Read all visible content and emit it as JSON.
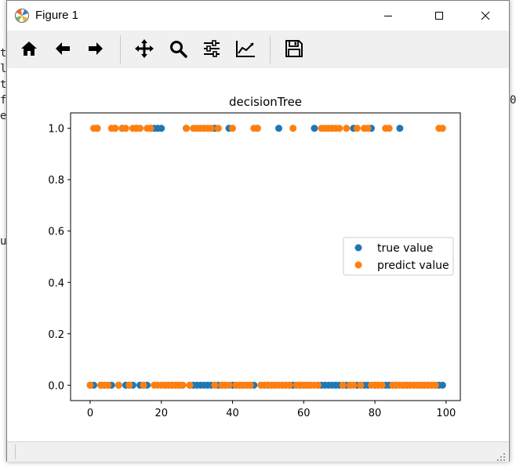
{
  "background_console": {
    "chars": [
      "t",
      "l",
      "t",
      "f",
      "e",
      "u",
      "0"
    ]
  },
  "window": {
    "title": "Figure 1",
    "app_icon": "matplotlib-figure-icon"
  },
  "toolbar": {
    "buttons": [
      {
        "name": "home-icon"
      },
      {
        "name": "back-arrow-icon"
      },
      {
        "name": "forward-arrow-icon"
      },
      {
        "name": "pan-move-icon"
      },
      {
        "name": "zoom-magnifier-icon"
      },
      {
        "name": "configure-subplots-icon"
      },
      {
        "name": "edit-axis-curve-icon"
      },
      {
        "name": "save-floppy-icon"
      }
    ]
  },
  "chart_data": {
    "type": "scatter",
    "title": "decisionTree",
    "xlabel": "",
    "ylabel": "",
    "xlim": [
      -5.5,
      104
    ],
    "ylim": [
      -0.06,
      1.06
    ],
    "x_ticks": [
      0,
      20,
      40,
      60,
      80,
      100
    ],
    "y_ticks": [
      0.0,
      0.2,
      0.4,
      0.6,
      0.8,
      1.0
    ],
    "x_tick_labels": [
      "0",
      "20",
      "40",
      "60",
      "80",
      "100"
    ],
    "y_tick_labels": [
      "0.0",
      "0.2",
      "0.4",
      "0.6",
      "0.8",
      "1.0"
    ],
    "grid": false,
    "legend_position": "center-right",
    "series": [
      {
        "name": "true value",
        "color": "#1f77b4",
        "x": [
          0,
          1,
          2,
          3,
          4,
          5,
          6,
          7,
          8,
          9,
          10,
          11,
          12,
          13,
          14,
          15,
          16,
          17,
          18,
          19,
          20,
          21,
          22,
          23,
          24,
          25,
          26,
          27,
          28,
          29,
          30,
          31,
          32,
          33,
          34,
          35,
          36,
          37,
          38,
          39,
          40,
          41,
          42,
          43,
          44,
          45,
          46,
          47,
          48,
          49,
          50,
          51,
          52,
          53,
          54,
          55,
          56,
          57,
          58,
          59,
          60,
          61,
          62,
          63,
          64,
          65,
          66,
          67,
          68,
          69,
          70,
          71,
          72,
          73,
          74,
          75,
          76,
          77,
          78,
          79,
          80,
          81,
          82,
          83,
          84,
          85,
          86,
          87,
          88,
          89,
          90,
          91,
          92,
          93,
          94,
          95,
          96,
          97,
          98,
          99
        ],
        "y": [
          0,
          0,
          1,
          0,
          0,
          0,
          0,
          1,
          0,
          1,
          0,
          0,
          0,
          1,
          0,
          0,
          0,
          1,
          1,
          1,
          1,
          0,
          0,
          0,
          0,
          0,
          0,
          1,
          0,
          0,
          0,
          0,
          0,
          0,
          0,
          1,
          0,
          0,
          0,
          1,
          0,
          0,
          0,
          0,
          0,
          0,
          0,
          1,
          0,
          0,
          0,
          0,
          0,
          1,
          0,
          0,
          0,
          0,
          0,
          0,
          0,
          0,
          0,
          1,
          0,
          0,
          0,
          0,
          0,
          0,
          0,
          0,
          0,
          0,
          1,
          0,
          0,
          0,
          0,
          1,
          0,
          0,
          0,
          0,
          0,
          0,
          0,
          1,
          0,
          0,
          0,
          0,
          0,
          0,
          0,
          0,
          0,
          0,
          0,
          0
        ]
      },
      {
        "name": "predict value",
        "color": "#ff7f0e",
        "x": [
          0,
          1,
          2,
          3,
          4,
          5,
          6,
          7,
          8,
          9,
          10,
          11,
          12,
          13,
          14,
          15,
          16,
          17,
          18,
          19,
          20,
          21,
          22,
          23,
          24,
          25,
          26,
          27,
          28,
          29,
          30,
          31,
          32,
          33,
          34,
          35,
          36,
          37,
          38,
          39,
          40,
          41,
          42,
          43,
          44,
          45,
          46,
          47,
          48,
          49,
          50,
          51,
          52,
          53,
          54,
          55,
          56,
          57,
          58,
          59,
          60,
          61,
          62,
          63,
          64,
          65,
          66,
          67,
          68,
          69,
          70,
          71,
          72,
          73,
          74,
          75,
          76,
          77,
          78,
          79,
          80,
          81,
          82,
          83,
          84,
          85,
          86,
          87,
          88,
          89,
          90,
          91,
          92,
          93,
          94,
          95,
          96,
          97,
          98,
          99
        ],
        "y": [
          0,
          1,
          1,
          0,
          0,
          0,
          1,
          1,
          0,
          1,
          1,
          0,
          1,
          1,
          1,
          0,
          1,
          1,
          0,
          0,
          0,
          0,
          0,
          0,
          0,
          0,
          0,
          1,
          0,
          1,
          1,
          1,
          1,
          1,
          1,
          0,
          1,
          0,
          0,
          0,
          1,
          0,
          0,
          0,
          0,
          0,
          1,
          1,
          0,
          0,
          0,
          0,
          0,
          0,
          0,
          0,
          0,
          1,
          0,
          0,
          0,
          0,
          0,
          0,
          0,
          1,
          1,
          1,
          1,
          1,
          1,
          0,
          1,
          0,
          0,
          1,
          0,
          1,
          1,
          0,
          0,
          0,
          0,
          1,
          1,
          0,
          0,
          0,
          0,
          0,
          0,
          0,
          0,
          0,
          0,
          0,
          0,
          0,
          1,
          1
        ]
      }
    ]
  }
}
